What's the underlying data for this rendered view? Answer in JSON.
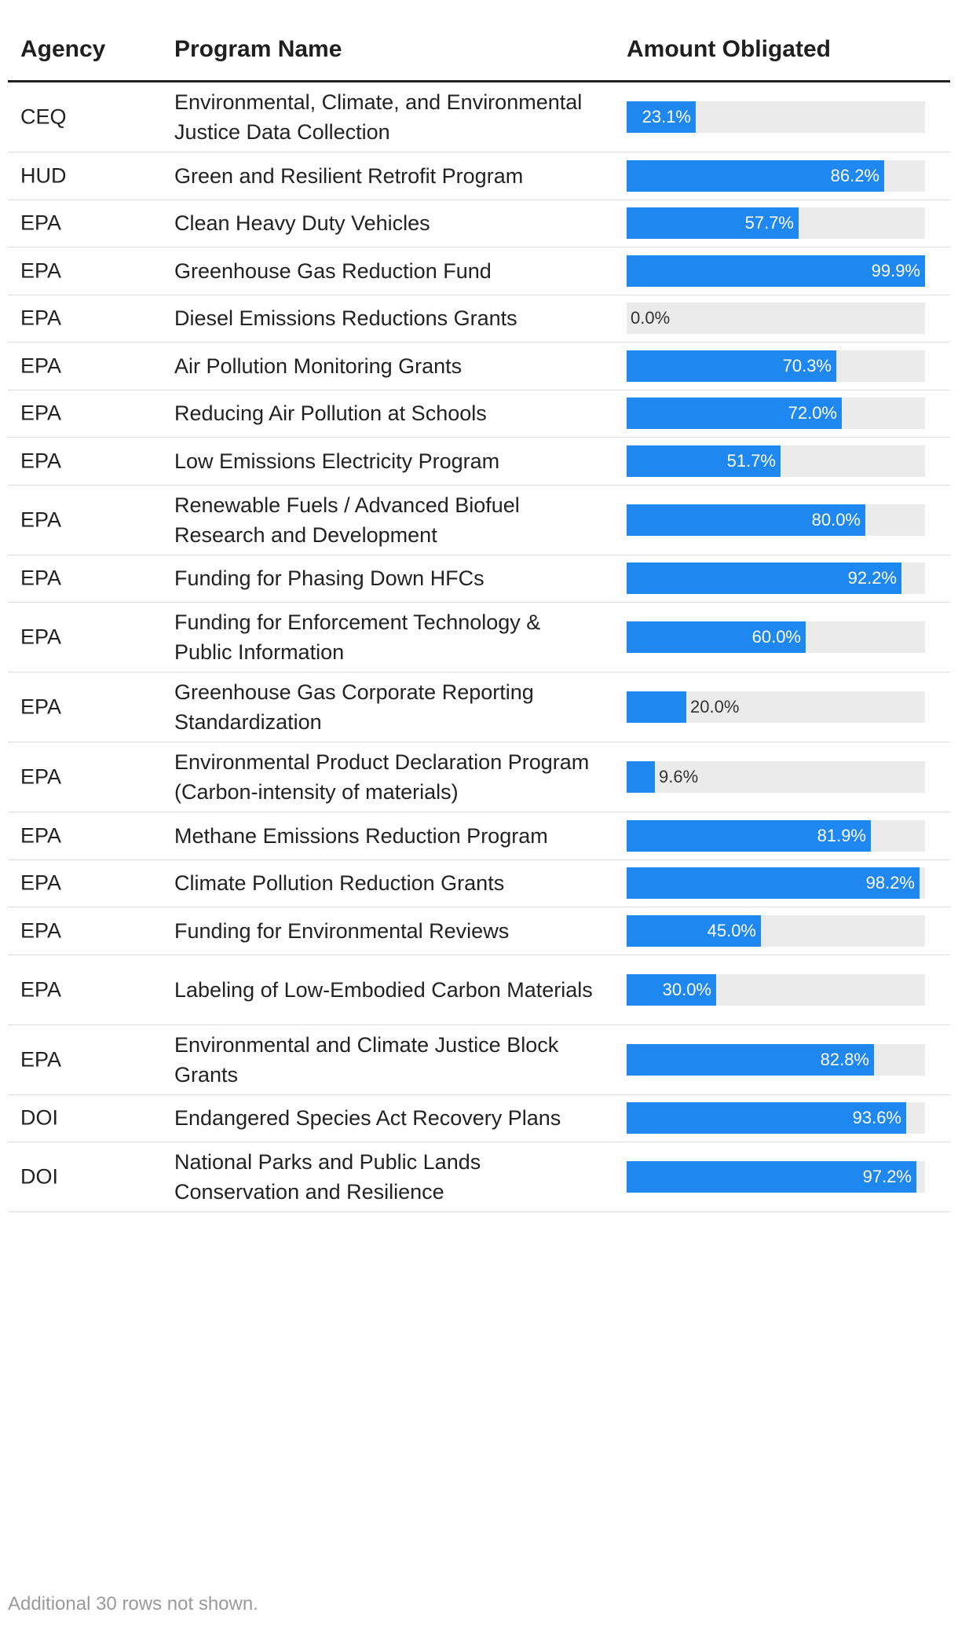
{
  "chart_data": {
    "type": "table",
    "columns": [
      "Agency",
      "Program Name",
      "Amount Obligated"
    ],
    "value_unit": "percent",
    "rows": [
      {
        "agency": "CEQ",
        "program": "Environmental, Climate, and Environmental Justice Data Collection",
        "value": 23.1,
        "label": "23.1%"
      },
      {
        "agency": "HUD",
        "program": "Green and Resilient Retrofit Program",
        "value": 86.2,
        "label": "86.2%"
      },
      {
        "agency": "EPA",
        "program": "Clean Heavy Duty Vehicles",
        "value": 57.7,
        "label": "57.7%"
      },
      {
        "agency": "EPA",
        "program": "Greenhouse Gas Reduction Fund",
        "value": 99.9,
        "label": "99.9%"
      },
      {
        "agency": "EPA",
        "program": "Diesel Emissions Reductions Grants",
        "value": 0.0,
        "label": "0.0%"
      },
      {
        "agency": "EPA",
        "program": "Air Pollution Monitoring Grants",
        "value": 70.3,
        "label": "70.3%"
      },
      {
        "agency": "EPA",
        "program": "Reducing Air Pollution at Schools",
        "value": 72.0,
        "label": "72.0%"
      },
      {
        "agency": "EPA",
        "program": "Low Emissions Electricity Program",
        "value": 51.7,
        "label": "51.7%"
      },
      {
        "agency": "EPA",
        "program": "Renewable Fuels / Advanced Biofuel Research and Development",
        "value": 80.0,
        "label": "80.0%"
      },
      {
        "agency": "EPA",
        "program": "Funding for Phasing Down HFCs",
        "value": 92.2,
        "label": "92.2%"
      },
      {
        "agency": "EPA",
        "program": "Funding for Enforcement Technology & Public Information",
        "value": 60.0,
        "label": "60.0%"
      },
      {
        "agency": "EPA",
        "program": "Greenhouse Gas Corporate Reporting Standardization",
        "value": 20.0,
        "label": "20.0%"
      },
      {
        "agency": "EPA",
        "program": "Environmental Product Declaration Program (Carbon-intensity of materials)",
        "value": 9.6,
        "label": "9.6%"
      },
      {
        "agency": "EPA",
        "program": "Methane Emissions Reduction Program",
        "value": 81.9,
        "label": "81.9%"
      },
      {
        "agency": "EPA",
        "program": "Climate Pollution Reduction Grants",
        "value": 98.2,
        "label": "98.2%"
      },
      {
        "agency": "EPA",
        "program": "Funding for Environmental Reviews",
        "value": 45.0,
        "label": "45.0%"
      },
      {
        "agency": "EPA",
        "program": "Labeling of Low-Embodied Carbon Materials",
        "value": 30.0,
        "label": "30.0%"
      },
      {
        "agency": "EPA",
        "program": "Environmental and Climate Justice Block Grants",
        "value": 82.8,
        "label": "82.8%"
      },
      {
        "agency": "DOI",
        "program": "Endangered Species Act Recovery Plans",
        "value": 93.6,
        "label": "93.6%"
      },
      {
        "agency": "DOI",
        "program": "National Parks and Public Lands Conservation and Resilience",
        "value": 97.2,
        "label": "97.2%"
      }
    ],
    "footnote": "Additional 30 rows not shown.",
    "colors": {
      "bar": "#1e87f0",
      "track": "#ebebeb",
      "header_rule": "#222222",
      "row_rule": "#dddddd"
    }
  }
}
